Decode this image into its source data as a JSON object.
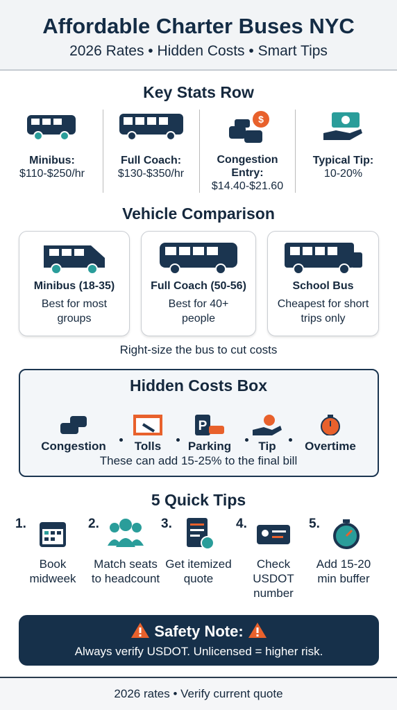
{
  "header": {
    "title": "Affordable Charter Buses NYC",
    "subtitle": "2026 Rates • Hidden Costs • Smart Tips"
  },
  "key_stats": {
    "title": "Key Stats Row",
    "items": [
      {
        "label": "Minibus:",
        "value": "$110-$250/hr"
      },
      {
        "label": "Full Coach:",
        "value": "$130-$350/hr"
      },
      {
        "label": "Congestion Entry:",
        "value": "$14.40-$21.60"
      },
      {
        "label": "Typical Tip:",
        "value": "10-20%"
      }
    ]
  },
  "vehicle_comparison": {
    "title": "Vehicle Comparison",
    "cards": [
      {
        "name": "Minibus (18-35)",
        "note": "Best for most groups"
      },
      {
        "name": "Full Coach (50-56)",
        "note": "Best for 40+ people"
      },
      {
        "name": "School Bus",
        "note": "Cheapest for short trips only"
      }
    ],
    "caption": "Right-size the bus to cut costs"
  },
  "hidden_costs": {
    "title": "Hidden Costs Box",
    "items": [
      "Congestion",
      "Tolls",
      "Parking",
      "Tip",
      "Overtime"
    ],
    "note": "These can add 15-25% to the final bill"
  },
  "quick_tips": {
    "title": "5 Quick Tips",
    "items": [
      {
        "number": "1.",
        "text": "Book midweek"
      },
      {
        "number": "2.",
        "text": "Match seats to headcount"
      },
      {
        "number": "3.",
        "text": "Get itemized quote"
      },
      {
        "number": "4.",
        "text": "Check USDOT number"
      },
      {
        "number": "5.",
        "text": "Add 15-20 min buffer"
      }
    ]
  },
  "safety_note": {
    "title": "Safety Note:",
    "text": "Always verify USDOT. Unlicensed = higher risk."
  },
  "footer": {
    "text": "2026 rates • Verify current quote"
  }
}
